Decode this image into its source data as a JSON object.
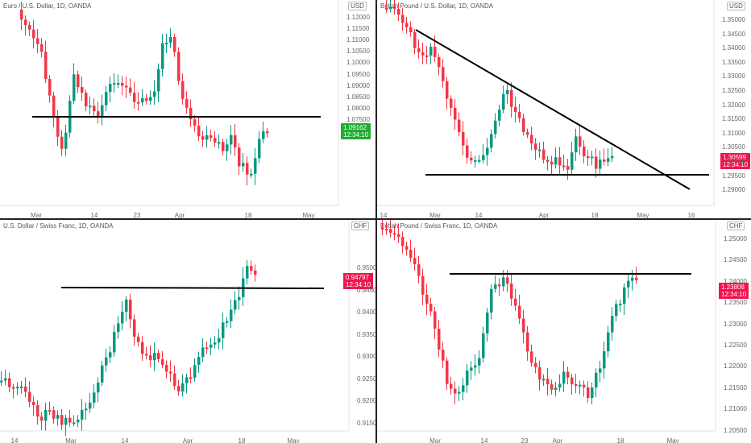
{
  "colors": {
    "up": "#089981",
    "down": "#f23645",
    "tag_up": "#22ab32",
    "tag_down": "#f0144e",
    "line": "#000000"
  },
  "panels": [
    {
      "id": "eurusd",
      "title": "Euro / U.S. Dollar, 1D, OANDA",
      "unit": "USD",
      "price": "1.09162",
      "countdown": "12:34:10",
      "tag_color": "up",
      "y_ticks": [
        "1.12000",
        "1.11500",
        "1.11000",
        "1.10500",
        "1.10000",
        "1.09500",
        "1.09000",
        "1.08500",
        "1.08000",
        "1.07500"
      ],
      "x_ticks": [
        "Mar",
        "14",
        "23",
        "Apr",
        "18",
        "May"
      ]
    },
    {
      "id": "gbpusd",
      "title": "British Pound / U.S. Dollar, 1D, OANDA",
      "unit": "USD",
      "price": "1.30599",
      "countdown": "12:34:10",
      "tag_color": "down",
      "y_ticks": [
        "1.35000",
        "1.34500",
        "1.34000",
        "1.33500",
        "1.33000",
        "1.32500",
        "1.32000",
        "1.31500",
        "1.31000",
        "1.30500",
        "1.30000",
        "1.29500",
        "1.29000"
      ],
      "x_ticks": [
        "14",
        "Mar",
        "14",
        "Apr",
        "18",
        "May",
        "16"
      ]
    },
    {
      "id": "usdchf",
      "title": "U.S. Dollar / Swiss Franc, 1D, OANDA",
      "unit": "CHF",
      "price": "0.94797",
      "countdown": "12:34:10",
      "tag_color": "down",
      "y_ticks": [
        "0.95000",
        "0.94500",
        "0.94000",
        "0.93500",
        "0.93000",
        "0.92500",
        "0.92000",
        "0.91500"
      ],
      "x_ticks": [
        "14",
        "Mar",
        "14",
        "Apr",
        "18",
        "May"
      ]
    },
    {
      "id": "gbpchf",
      "title": "British Pound / Swiss Franc, 1D, OANDA",
      "unit": "CHF",
      "price": "1.23808",
      "countdown": "12:34:10",
      "tag_color": "down",
      "y_ticks": [
        "1.25000",
        "1.24500",
        "1.24000",
        "1.23500",
        "1.23000",
        "1.22500",
        "1.22000",
        "1.21500",
        "1.21000",
        "1.20500"
      ],
      "x_ticks": [
        "Mar",
        "14",
        "23",
        "Apr",
        "18",
        "May"
      ]
    }
  ]
}
